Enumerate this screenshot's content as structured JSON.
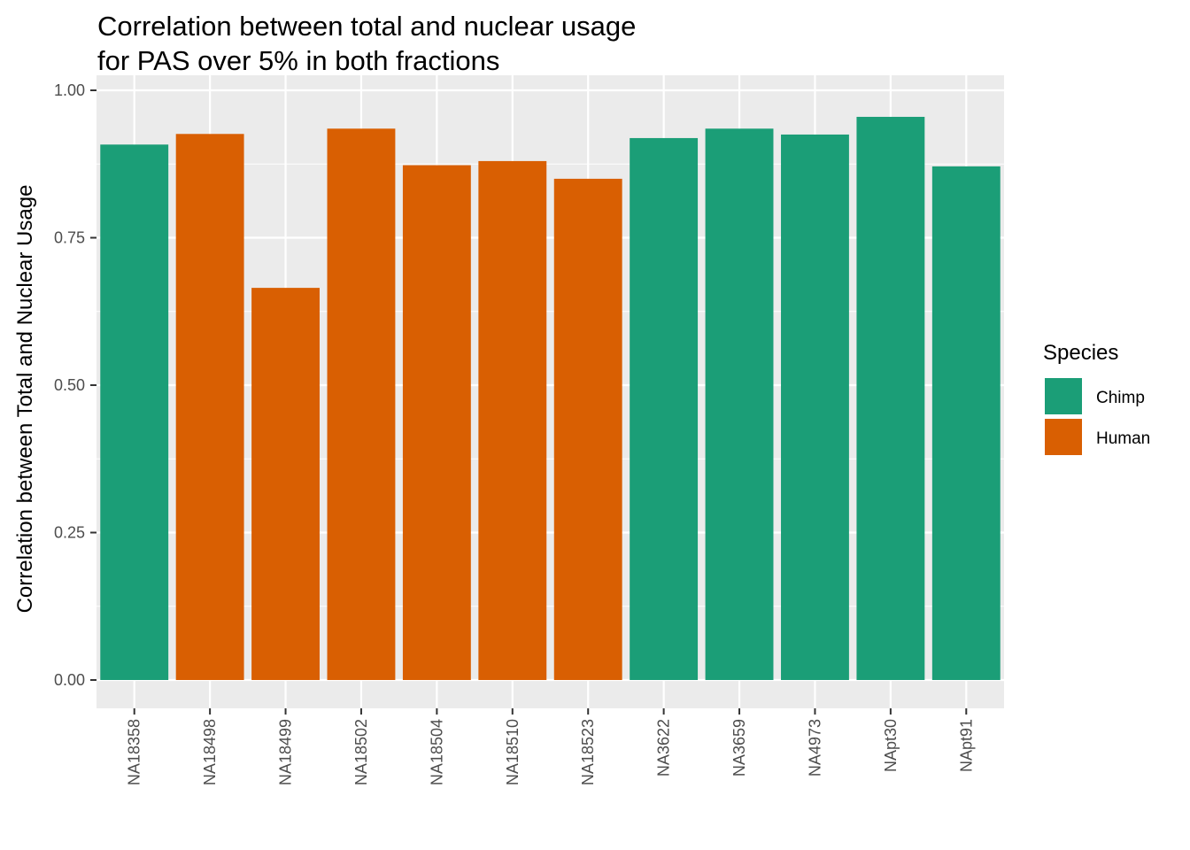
{
  "chart_data": {
    "type": "bar",
    "title": "Correlation between total and nuclear usage\nfor PAS over 5% in both fractions",
    "title_lines": [
      "Correlation between total and nuclear usage",
      "for PAS over 5% in both fractions"
    ],
    "xlabel": "",
    "ylabel": "Correlation between Total and Nuclear Usage",
    "ylim": [
      0,
      1.0
    ],
    "yticks": [
      "0.00",
      "0.25",
      "0.50",
      "0.75",
      "1.00"
    ],
    "ytick_values": [
      0,
      0.25,
      0.5,
      0.75,
      1.0
    ],
    "grid": true,
    "legend_position": "right",
    "categories": [
      "NA18358",
      "NA18498",
      "NA18499",
      "NA18502",
      "NA18504",
      "NA18510",
      "NA18523",
      "NA3622",
      "NA3659",
      "NA4973",
      "NApt30",
      "NApt91"
    ],
    "values": [
      0.908,
      0.926,
      0.665,
      0.935,
      0.873,
      0.88,
      0.85,
      0.919,
      0.935,
      0.925,
      0.955,
      0.871
    ],
    "species": [
      "Chimp",
      "Human",
      "Human",
      "Human",
      "Human",
      "Human",
      "Human",
      "Chimp",
      "Chimp",
      "Chimp",
      "Chimp",
      "Chimp"
    ],
    "legend": {
      "title": "Species",
      "entries": [
        {
          "label": "Chimp",
          "color": "#1b9e77"
        },
        {
          "label": "Human",
          "color": "#d95f02"
        }
      ]
    },
    "colors": {
      "Chimp": "#1b9e77",
      "Human": "#d95f02",
      "panel": "#ebebeb",
      "grid": "#ffffff"
    }
  }
}
